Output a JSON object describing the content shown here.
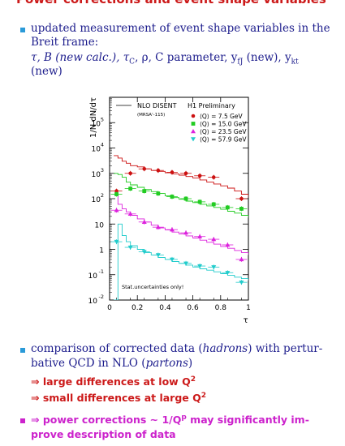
{
  "slide": {
    "title": "Power corrections and event shape variables",
    "bullet1": {
      "line1": "updated measurement of event shape variables in the",
      "line2": "Breit frame:",
      "line3_parts": [
        "τ, B (new calc.), τ",
        "C",
        ", ρ, C parameter, y",
        "fJ",
        " (new), y",
        "kt"
      ],
      "line4": "(new)"
    },
    "bullet2": {
      "line1_a": "comparison of corrected data (",
      "line1_em": "hadrons",
      "line1_b": ") with pertur-",
      "line2_a": "bative QCD in NLO (",
      "line2_em": "partons",
      "line2_b": ")"
    },
    "arrow1": {
      "text": "⇒ large differences at low Q",
      "sup": "2"
    },
    "arrow2": {
      "text": "⇒ small differences at large Q",
      "sup": "2"
    },
    "bullet3": {
      "line1_a": "⇒ power corrections ∼ 1/Q",
      "line1_sup": "p",
      "line1_b": " may significantly im-",
      "line2": "prove description of data"
    },
    "colors": {
      "title": "#cc1a1a",
      "body_text": "#1c1c8c",
      "bullet": "#2a9ad8",
      "magenta_bullet": "#cc22cc"
    }
  },
  "chart_data": {
    "type": "scatter",
    "ylabel": "1/N dN/dτ",
    "xlabel": "τ",
    "xlim": [
      0,
      1
    ],
    "ylog": true,
    "ylim": [
      0.01,
      1000000
    ],
    "x_ticks": [
      "0",
      "0.2",
      "0.4",
      "0.6",
      "0.8",
      "1"
    ],
    "y_ticks": [
      {
        "base": "10",
        "exp": "-2"
      },
      {
        "base": "10",
        "exp": "-1"
      },
      {
        "base": "1",
        "exp": ""
      },
      {
        "base": "10",
        "exp": ""
      },
      {
        "base": "10",
        "exp": "2"
      },
      {
        "base": "10",
        "exp": "3"
      },
      {
        "base": "10",
        "exp": "4"
      },
      {
        "base": "10",
        "exp": "5"
      }
    ],
    "legend_title": "NLO DISENT",
    "legend_sub": "(MRSA'-115)",
    "preliminary": "H1 Preliminary",
    "note": "Stat.uncertainties only!",
    "series": [
      {
        "name": "⟨Q⟩ =   7.5 GeV",
        "color": "#cc1111",
        "marker": "circle",
        "x": [
          0.05,
          0.15,
          0.25,
          0.35,
          0.45,
          0.55,
          0.65,
          0.75,
          0.95
        ],
        "y": [
          200,
          1000,
          1500,
          1300,
          1100,
          1000,
          800,
          700,
          100
        ]
      },
      {
        "name": "⟨Q⟩ = 15.0 GeV",
        "color": "#22cc22",
        "marker": "square",
        "x": [
          0.05,
          0.15,
          0.25,
          0.35,
          0.45,
          0.55,
          0.65,
          0.75,
          0.85,
          0.95
        ],
        "y": [
          150,
          250,
          200,
          160,
          120,
          100,
          75,
          60,
          45,
          40
        ]
      },
      {
        "name": "⟨Q⟩ = 23.5 GeV",
        "color": "#dd22dd",
        "marker": "triangle-up",
        "x": [
          0.05,
          0.15,
          0.25,
          0.35,
          0.45,
          0.55,
          0.65,
          0.75,
          0.85,
          0.95
        ],
        "y": [
          35,
          25,
          12,
          7.5,
          6,
          4.5,
          3.2,
          2.5,
          1.5,
          0.4
        ]
      },
      {
        "name": "⟨Q⟩ = 57.9 GeV",
        "color": "#22cccc",
        "marker": "triangle-down",
        "x": [
          0.05,
          0.15,
          0.25,
          0.35,
          0.45,
          0.55,
          0.65,
          0.75,
          0.85,
          0.95
        ],
        "y": [
          2,
          1.2,
          0.8,
          0.6,
          0.4,
          0.28,
          0.22,
          0.2,
          0.12,
          0.05
        ]
      }
    ],
    "curves": [
      {
        "color": "#cc1111",
        "x": [
          0.03,
          0.06,
          0.09,
          0.12,
          0.15,
          0.2,
          0.25,
          0.3,
          0.35,
          0.4,
          0.45,
          0.5,
          0.55,
          0.6,
          0.65,
          0.7,
          0.75,
          0.8,
          0.85,
          0.9,
          0.95,
          1.0
        ],
        "y": [
          5000,
          4000,
          3000,
          2500,
          2000,
          1800,
          1500,
          1300,
          1200,
          1050,
          950,
          850,
          750,
          650,
          550,
          450,
          380,
          320,
          260,
          200,
          150,
          110
        ]
      },
      {
        "color": "#22cc22",
        "x": [
          0.03,
          0.06,
          0.09,
          0.12,
          0.15,
          0.2,
          0.25,
          0.3,
          0.35,
          0.4,
          0.45,
          0.5,
          0.55,
          0.6,
          0.65,
          0.7,
          0.75,
          0.8,
          0.85,
          0.9,
          0.95,
          1.0
        ],
        "y": [
          1000,
          900,
          700,
          450,
          350,
          280,
          230,
          190,
          160,
          130,
          110,
          95,
          80,
          70,
          60,
          52,
          45,
          38,
          32,
          27,
          22,
          18
        ]
      },
      {
        "color": "#dd22dd",
        "x": [
          0.03,
          0.06,
          0.09,
          0.12,
          0.15,
          0.2,
          0.25,
          0.3,
          0.35,
          0.4,
          0.45,
          0.5,
          0.55,
          0.6,
          0.65,
          0.7,
          0.75,
          0.8,
          0.85,
          0.9,
          0.95,
          1.0
        ],
        "y": [
          150,
          60,
          40,
          30,
          22,
          16,
          12,
          9,
          7,
          5.8,
          4.8,
          4.1,
          3.4,
          2.8,
          2.3,
          1.9,
          1.6,
          1.3,
          1.1,
          0.9,
          0.75,
          0.6
        ]
      },
      {
        "color": "#22cccc",
        "x": [
          0.03,
          0.06,
          0.09,
          0.12,
          0.15,
          0.2,
          0.25,
          0.3,
          0.35,
          0.4,
          0.45,
          0.5,
          0.55,
          0.6,
          0.65,
          0.7,
          0.75,
          0.8,
          0.85,
          0.9,
          0.95,
          1.0
        ],
        "y": [
          0.01,
          10,
          3.5,
          2,
          1.4,
          1,
          0.75,
          0.6,
          0.48,
          0.4,
          0.33,
          0.28,
          0.24,
          0.2,
          0.17,
          0.15,
          0.13,
          0.11,
          0.095,
          0.08,
          0.07,
          0.06
        ]
      }
    ]
  }
}
